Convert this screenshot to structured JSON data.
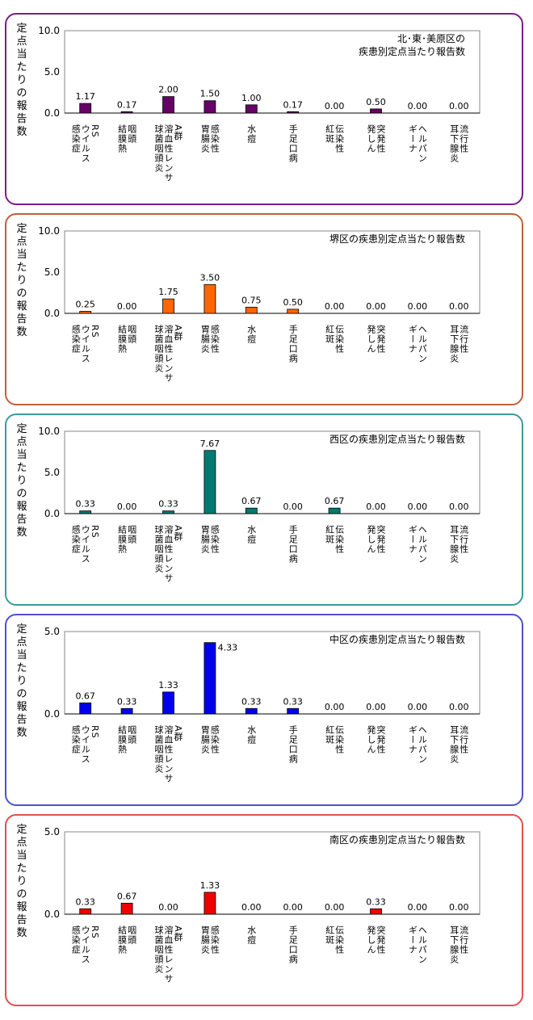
{
  "ylabel": "定点当たりの報告数",
  "categories": [
    [
      "RS",
      "ウイルス",
      "感染症"
    ],
    [
      "咽頭",
      "結膜熱"
    ],
    [
      "A群",
      "溶血性レンサ",
      "球菌咽頭炎"
    ],
    [
      "感染性",
      "胃腸炎"
    ],
    [
      "水痘"
    ],
    [
      "手足口病"
    ],
    [
      "伝染性",
      "紅斑"
    ],
    [
      "突発性",
      "発しん"
    ],
    [
      "ヘルパン",
      "ギーナ"
    ],
    [
      "流行性",
      "耳下腺炎"
    ]
  ],
  "chart_data": [
    {
      "type": "bar",
      "title": "北･東･美原区の疾患別定点当たり報告数",
      "title_lines": [
        "北･東･美原区の",
        "疾患別定点当たり報告数"
      ],
      "color": "#660066",
      "border_color": "#7a1e86",
      "ylim": [
        0,
        10
      ],
      "yticks": [
        "0.0",
        "5.0",
        "10.0"
      ],
      "values": [
        1.17,
        0.17,
        2.0,
        1.5,
        1.0,
        0.17,
        0.0,
        0.5,
        0.0,
        0.0
      ],
      "labels": [
        "1.17",
        "0.17",
        "2.00",
        "1.50",
        "1.00",
        "0.17",
        "0.00",
        "0.50",
        "0.00",
        "0.00"
      ]
    },
    {
      "type": "bar",
      "title": "堺区の疾患別定点当たり報告数",
      "title_lines": [
        "堺区の疾患別定点当たり報告数"
      ],
      "color": "#ff6600",
      "border_color": "#c0603a",
      "ylim": [
        0,
        10
      ],
      "yticks": [
        "0.0",
        "5.0",
        "10.0"
      ],
      "values": [
        0.25,
        0.0,
        1.75,
        3.5,
        0.75,
        0.5,
        0.0,
        0.0,
        0.0,
        0.0
      ],
      "labels": [
        "0.25",
        "0.00",
        "1.75",
        "3.50",
        "0.75",
        "0.50",
        "0.00",
        "0.00",
        "0.00",
        "0.00"
      ]
    },
    {
      "type": "bar",
      "title": "西区の疾患別定点当たり報告数",
      "title_lines": [
        "西区の疾患別定点当たり報告数"
      ],
      "color": "#007a70",
      "border_color": "#3c9a9a",
      "ylim": [
        0,
        10
      ],
      "yticks": [
        "0.0",
        "5.0",
        "10.0"
      ],
      "values": [
        0.33,
        0.0,
        0.33,
        7.67,
        0.67,
        0.0,
        0.67,
        0.0,
        0.0,
        0.0
      ],
      "labels": [
        "0.33",
        "0.00",
        "0.33",
        "7.67",
        "0.67",
        "0.00",
        "0.67",
        "0.00",
        "0.00",
        "0.00"
      ]
    },
    {
      "type": "bar",
      "title": "中区の疾患別定点当たり報告数",
      "title_lines": [
        "中区の疾患別定点当たり報告数"
      ],
      "color": "#0000ee",
      "border_color": "#5050c8",
      "ylim": [
        0,
        5
      ],
      "yticks": [
        "0.0",
        "5.0"
      ],
      "values": [
        0.67,
        0.33,
        1.33,
        4.33,
        0.33,
        0.33,
        0.0,
        0.0,
        0.0,
        0.0
      ],
      "labels": [
        "0.67",
        "0.33",
        "1.33",
        "4.33",
        "0.33",
        "0.33",
        "0.00",
        "0.00",
        "0.00",
        "0.00"
      ]
    },
    {
      "type": "bar",
      "title": "南区の疾患別定点当たり報告数",
      "title_lines": [
        "南区の疾患別定点当たり報告数"
      ],
      "color": "#ee0000",
      "border_color": "#e05050",
      "ylim": [
        0,
        5
      ],
      "yticks": [
        "0.0",
        "5.0"
      ],
      "values": [
        0.33,
        0.67,
        0.0,
        1.33,
        0.0,
        0.0,
        0.0,
        0.33,
        0.0,
        0.0
      ],
      "labels": [
        "0.33",
        "0.67",
        "0.00",
        "1.33",
        "0.00",
        "0.00",
        "0.00",
        "0.33",
        "0.00",
        "0.00"
      ]
    }
  ]
}
